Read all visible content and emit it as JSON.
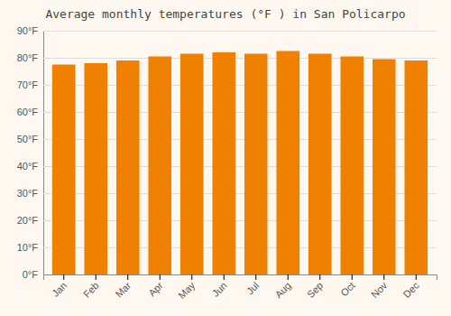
{
  "chart_data": {
    "type": "bar",
    "title": "Average monthly temperatures (°F ) in San Policarpo",
    "categories": [
      "Jan",
      "Feb",
      "Mar",
      "Apr",
      "May",
      "Jun",
      "Jul",
      "Aug",
      "Sep",
      "Oct",
      "Nov",
      "Dec"
    ],
    "values": [
      77.5,
      78.0,
      79.0,
      80.5,
      81.5,
      82.0,
      81.5,
      82.5,
      81.5,
      80.5,
      79.5,
      79.0
    ],
    "color": "#F08000",
    "ylim": [
      0,
      90
    ],
    "yticks": [
      {
        "value": 0,
        "label": "0°F"
      },
      {
        "value": 10,
        "label": "10°F"
      },
      {
        "value": 20,
        "label": "20°F"
      },
      {
        "value": 30,
        "label": "30°F"
      },
      {
        "value": 40,
        "label": "40°F"
      },
      {
        "value": 50,
        "label": "50°F"
      },
      {
        "value": 60,
        "label": "60°F"
      },
      {
        "value": 70,
        "label": "70°F"
      },
      {
        "value": 80,
        "label": "80°F"
      },
      {
        "value": 90,
        "label": "90°F"
      }
    ],
    "grid": true
  }
}
